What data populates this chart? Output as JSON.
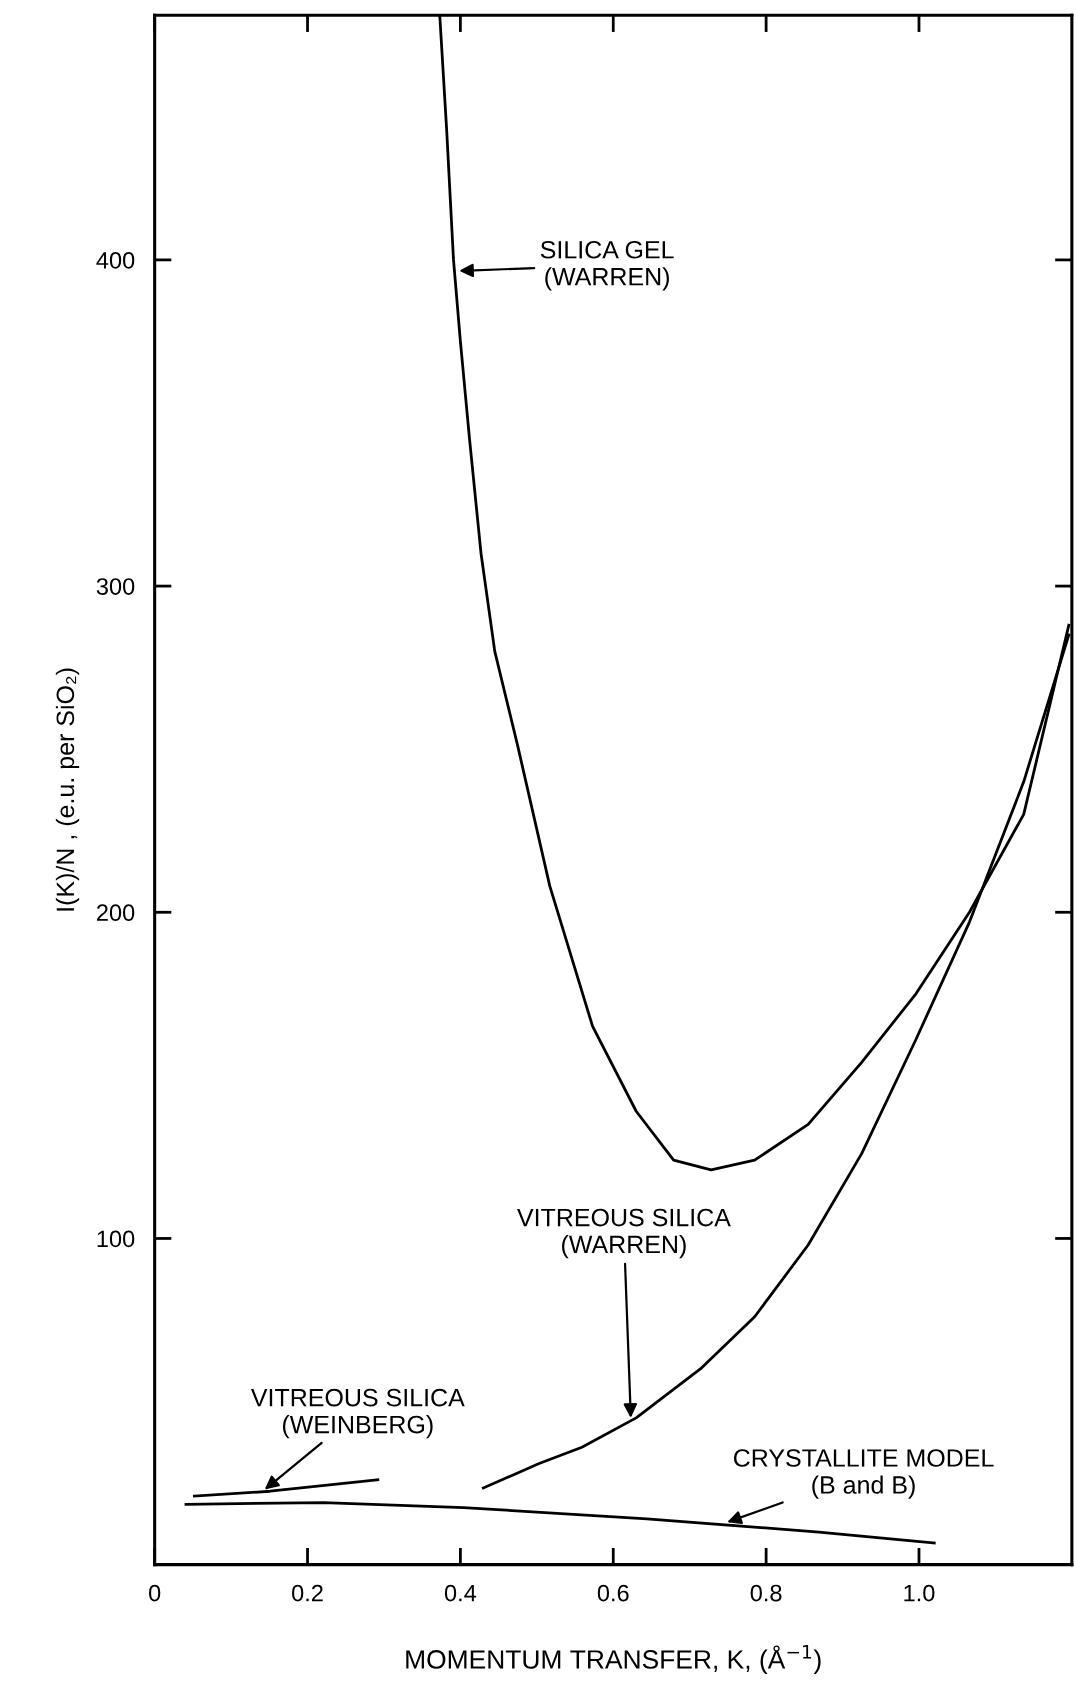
{
  "chart_data": {
    "type": "line",
    "xlabel": "MOMENTUM TRANSFER, K, (Å$^{−1}$)",
    "ylabel": "I(K)/N , (e.u. per SiO₂)",
    "xlim": [
      0,
      1.2
    ],
    "ylim": [
      0,
      475
    ],
    "xticks": [
      0,
      0.2,
      0.4,
      0.6,
      0.8,
      "1.0"
    ],
    "yticks": [
      100,
      200,
      300,
      400
    ],
    "grid": false,
    "marker": "none",
    "line_style": "solid",
    "series": [
      {
        "color": "#000000",
        "x": [
          0.373,
          0.382,
          0.391,
          0.4,
          0.412,
          0.427,
          0.445,
          0.475,
          0.517,
          0.573,
          0.63,
          0.679,
          0.728,
          0.785,
          0.855,
          0.925,
          0.996,
          1.066,
          1.137,
          1.196
        ],
        "values": [
          475,
          440,
          400,
          375,
          345,
          310,
          280,
          251,
          208,
          165,
          139,
          124,
          121,
          124,
          135,
          154,
          175,
          200,
          230,
          288
        ]
      },
      {
        "color": "#000000",
        "x": [
          0.43,
          0.503,
          0.559,
          0.63,
          0.714,
          0.785,
          0.855,
          0.925,
          0.996,
          1.066,
          1.137,
          1.196
        ],
        "values": [
          23.5,
          31,
          36,
          45,
          60,
          76,
          98,
          126,
          161,
          197,
          240,
          285
        ]
      },
      {
        "color": "#000000",
        "x": [
          0.052,
          0.151,
          0.292
        ],
        "values": [
          21,
          22.5,
          26
        ]
      },
      {
        "color": "#000000",
        "x": [
          0.041,
          0.221,
          0.404,
          0.644,
          0.869,
          1.02
        ],
        "values": [
          18.5,
          19,
          17.5,
          14,
          10,
          6.6
        ]
      }
    ],
    "annotations": [
      "SILICA GEL\n(WARREN)",
      {
        "text": "VITREOUS SILICA\n(WARREN)",
        "x": 0.623,
        "y": 45
      },
      {
        "text": "VITREOUS SILICA\n(WEINBERG)",
        "x": 0.144,
        "y": 23
      },
      {
        "text": "CRYSTALLITE MODEL\n(B and B)",
        "x": 0.749,
        "y": 13
      }
    ]
  }
}
